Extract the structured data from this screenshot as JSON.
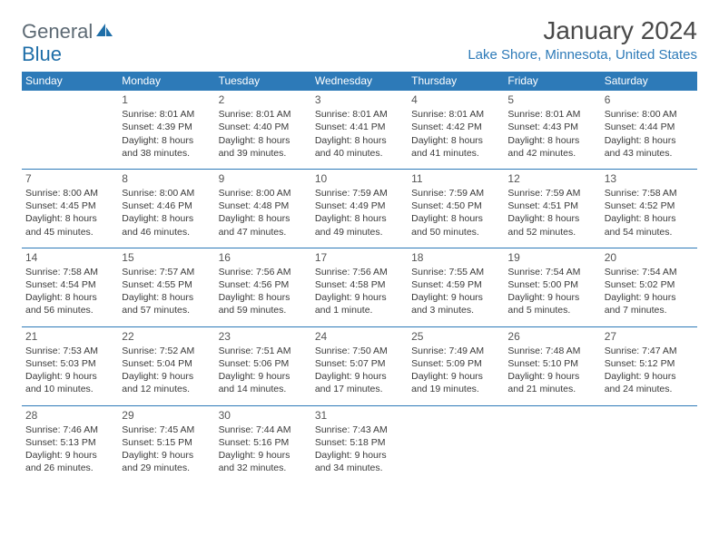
{
  "logo": {
    "text1": "General",
    "text2": "Blue"
  },
  "header": {
    "month_title": "January 2024",
    "location": "Lake Shore, Minnesota, United States"
  },
  "colors": {
    "header_bg": "#2d7ab8",
    "header_text": "#ffffff",
    "row_border": "#2d7ab8",
    "body_text": "#3a3a3a",
    "title_text": "#4a4a4a",
    "location_text": "#2d7ab8",
    "logo_gray": "#5d6a74",
    "logo_blue": "#1e6ea8"
  },
  "day_names": [
    "Sunday",
    "Monday",
    "Tuesday",
    "Wednesday",
    "Thursday",
    "Friday",
    "Saturday"
  ],
  "weeks": [
    [
      {
        "num": "",
        "l1": "",
        "l2": "",
        "l3": "",
        "l4": ""
      },
      {
        "num": "1",
        "l1": "Sunrise: 8:01 AM",
        "l2": "Sunset: 4:39 PM",
        "l3": "Daylight: 8 hours",
        "l4": "and 38 minutes."
      },
      {
        "num": "2",
        "l1": "Sunrise: 8:01 AM",
        "l2": "Sunset: 4:40 PM",
        "l3": "Daylight: 8 hours",
        "l4": "and 39 minutes."
      },
      {
        "num": "3",
        "l1": "Sunrise: 8:01 AM",
        "l2": "Sunset: 4:41 PM",
        "l3": "Daylight: 8 hours",
        "l4": "and 40 minutes."
      },
      {
        "num": "4",
        "l1": "Sunrise: 8:01 AM",
        "l2": "Sunset: 4:42 PM",
        "l3": "Daylight: 8 hours",
        "l4": "and 41 minutes."
      },
      {
        "num": "5",
        "l1": "Sunrise: 8:01 AM",
        "l2": "Sunset: 4:43 PM",
        "l3": "Daylight: 8 hours",
        "l4": "and 42 minutes."
      },
      {
        "num": "6",
        "l1": "Sunrise: 8:00 AM",
        "l2": "Sunset: 4:44 PM",
        "l3": "Daylight: 8 hours",
        "l4": "and 43 minutes."
      }
    ],
    [
      {
        "num": "7",
        "l1": "Sunrise: 8:00 AM",
        "l2": "Sunset: 4:45 PM",
        "l3": "Daylight: 8 hours",
        "l4": "and 45 minutes."
      },
      {
        "num": "8",
        "l1": "Sunrise: 8:00 AM",
        "l2": "Sunset: 4:46 PM",
        "l3": "Daylight: 8 hours",
        "l4": "and 46 minutes."
      },
      {
        "num": "9",
        "l1": "Sunrise: 8:00 AM",
        "l2": "Sunset: 4:48 PM",
        "l3": "Daylight: 8 hours",
        "l4": "and 47 minutes."
      },
      {
        "num": "10",
        "l1": "Sunrise: 7:59 AM",
        "l2": "Sunset: 4:49 PM",
        "l3": "Daylight: 8 hours",
        "l4": "and 49 minutes."
      },
      {
        "num": "11",
        "l1": "Sunrise: 7:59 AM",
        "l2": "Sunset: 4:50 PM",
        "l3": "Daylight: 8 hours",
        "l4": "and 50 minutes."
      },
      {
        "num": "12",
        "l1": "Sunrise: 7:59 AM",
        "l2": "Sunset: 4:51 PM",
        "l3": "Daylight: 8 hours",
        "l4": "and 52 minutes."
      },
      {
        "num": "13",
        "l1": "Sunrise: 7:58 AM",
        "l2": "Sunset: 4:52 PM",
        "l3": "Daylight: 8 hours",
        "l4": "and 54 minutes."
      }
    ],
    [
      {
        "num": "14",
        "l1": "Sunrise: 7:58 AM",
        "l2": "Sunset: 4:54 PM",
        "l3": "Daylight: 8 hours",
        "l4": "and 56 minutes."
      },
      {
        "num": "15",
        "l1": "Sunrise: 7:57 AM",
        "l2": "Sunset: 4:55 PM",
        "l3": "Daylight: 8 hours",
        "l4": "and 57 minutes."
      },
      {
        "num": "16",
        "l1": "Sunrise: 7:56 AM",
        "l2": "Sunset: 4:56 PM",
        "l3": "Daylight: 8 hours",
        "l4": "and 59 minutes."
      },
      {
        "num": "17",
        "l1": "Sunrise: 7:56 AM",
        "l2": "Sunset: 4:58 PM",
        "l3": "Daylight: 9 hours",
        "l4": "and 1 minute."
      },
      {
        "num": "18",
        "l1": "Sunrise: 7:55 AM",
        "l2": "Sunset: 4:59 PM",
        "l3": "Daylight: 9 hours",
        "l4": "and 3 minutes."
      },
      {
        "num": "19",
        "l1": "Sunrise: 7:54 AM",
        "l2": "Sunset: 5:00 PM",
        "l3": "Daylight: 9 hours",
        "l4": "and 5 minutes."
      },
      {
        "num": "20",
        "l1": "Sunrise: 7:54 AM",
        "l2": "Sunset: 5:02 PM",
        "l3": "Daylight: 9 hours",
        "l4": "and 7 minutes."
      }
    ],
    [
      {
        "num": "21",
        "l1": "Sunrise: 7:53 AM",
        "l2": "Sunset: 5:03 PM",
        "l3": "Daylight: 9 hours",
        "l4": "and 10 minutes."
      },
      {
        "num": "22",
        "l1": "Sunrise: 7:52 AM",
        "l2": "Sunset: 5:04 PM",
        "l3": "Daylight: 9 hours",
        "l4": "and 12 minutes."
      },
      {
        "num": "23",
        "l1": "Sunrise: 7:51 AM",
        "l2": "Sunset: 5:06 PM",
        "l3": "Daylight: 9 hours",
        "l4": "and 14 minutes."
      },
      {
        "num": "24",
        "l1": "Sunrise: 7:50 AM",
        "l2": "Sunset: 5:07 PM",
        "l3": "Daylight: 9 hours",
        "l4": "and 17 minutes."
      },
      {
        "num": "25",
        "l1": "Sunrise: 7:49 AM",
        "l2": "Sunset: 5:09 PM",
        "l3": "Daylight: 9 hours",
        "l4": "and 19 minutes."
      },
      {
        "num": "26",
        "l1": "Sunrise: 7:48 AM",
        "l2": "Sunset: 5:10 PM",
        "l3": "Daylight: 9 hours",
        "l4": "and 21 minutes."
      },
      {
        "num": "27",
        "l1": "Sunrise: 7:47 AM",
        "l2": "Sunset: 5:12 PM",
        "l3": "Daylight: 9 hours",
        "l4": "and 24 minutes."
      }
    ],
    [
      {
        "num": "28",
        "l1": "Sunrise: 7:46 AM",
        "l2": "Sunset: 5:13 PM",
        "l3": "Daylight: 9 hours",
        "l4": "and 26 minutes."
      },
      {
        "num": "29",
        "l1": "Sunrise: 7:45 AM",
        "l2": "Sunset: 5:15 PM",
        "l3": "Daylight: 9 hours",
        "l4": "and 29 minutes."
      },
      {
        "num": "30",
        "l1": "Sunrise: 7:44 AM",
        "l2": "Sunset: 5:16 PM",
        "l3": "Daylight: 9 hours",
        "l4": "and 32 minutes."
      },
      {
        "num": "31",
        "l1": "Sunrise: 7:43 AM",
        "l2": "Sunset: 5:18 PM",
        "l3": "Daylight: 9 hours",
        "l4": "and 34 minutes."
      },
      {
        "num": "",
        "l1": "",
        "l2": "",
        "l3": "",
        "l4": ""
      },
      {
        "num": "",
        "l1": "",
        "l2": "",
        "l3": "",
        "l4": ""
      },
      {
        "num": "",
        "l1": "",
        "l2": "",
        "l3": "",
        "l4": ""
      }
    ]
  ]
}
